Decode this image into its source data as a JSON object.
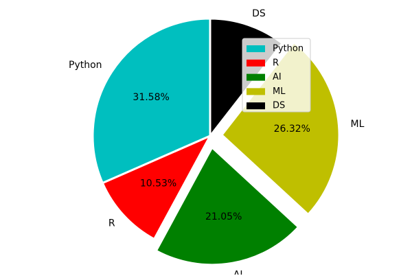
{
  "chart_data": {
    "type": "pie",
    "slices": [
      {
        "label": "Python",
        "value": 31.58,
        "pct_label": "31.58%",
        "color": "#00BFBF",
        "exploded": false
      },
      {
        "label": "R",
        "value": 10.53,
        "pct_label": "10.53%",
        "color": "#FF0000",
        "exploded": false
      },
      {
        "label": "AI",
        "value": 21.05,
        "pct_label": "21.05%",
        "color": "#008000",
        "exploded": true
      },
      {
        "label": "ML",
        "value": 26.32,
        "pct_label": "26.32%",
        "color": "#BFBF00",
        "exploded": true
      },
      {
        "label": "DS",
        "value": 10.53,
        "pct_label": "",
        "color": "#000000",
        "exploded": false
      }
    ],
    "start_angle_deg": 90,
    "direction": "counterclockwise",
    "legend": {
      "placement": "top-right",
      "entries": [
        "Python",
        "R",
        "AI",
        "ML",
        "DS"
      ]
    }
  }
}
